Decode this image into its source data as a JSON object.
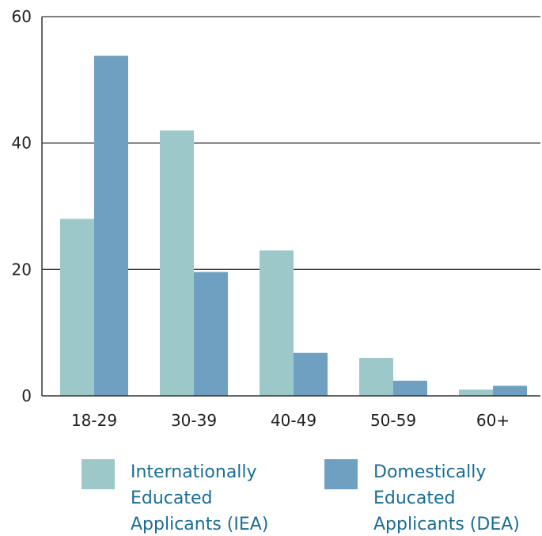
{
  "chart_data": {
    "type": "bar",
    "title": "",
    "xlabel": "",
    "ylabel": "",
    "categories": [
      "18-29",
      "30-39",
      "40-49",
      "50-59",
      "60+"
    ],
    "series": [
      {
        "name": "Internationally Educated Applicants (IEA)",
        "legend_lines": [
          "Internationally",
          "Educated",
          "Applicants (IEA)"
        ],
        "color": "#9dc8c9",
        "values": [
          28,
          42,
          23,
          6,
          1
        ]
      },
      {
        "name": "Domestically Educated Applicants (DEA)",
        "legend_lines": [
          "Domestically",
          "Educated",
          "Applicants (DEA)"
        ],
        "color": "#6fa0c1",
        "values": [
          53.8,
          19.6,
          6.8,
          2.4,
          1.6
        ]
      }
    ],
    "ylim": [
      0,
      60
    ],
    "yticks": [
      0,
      20,
      40,
      60
    ],
    "grid": true,
    "legend_position": "bottom"
  }
}
